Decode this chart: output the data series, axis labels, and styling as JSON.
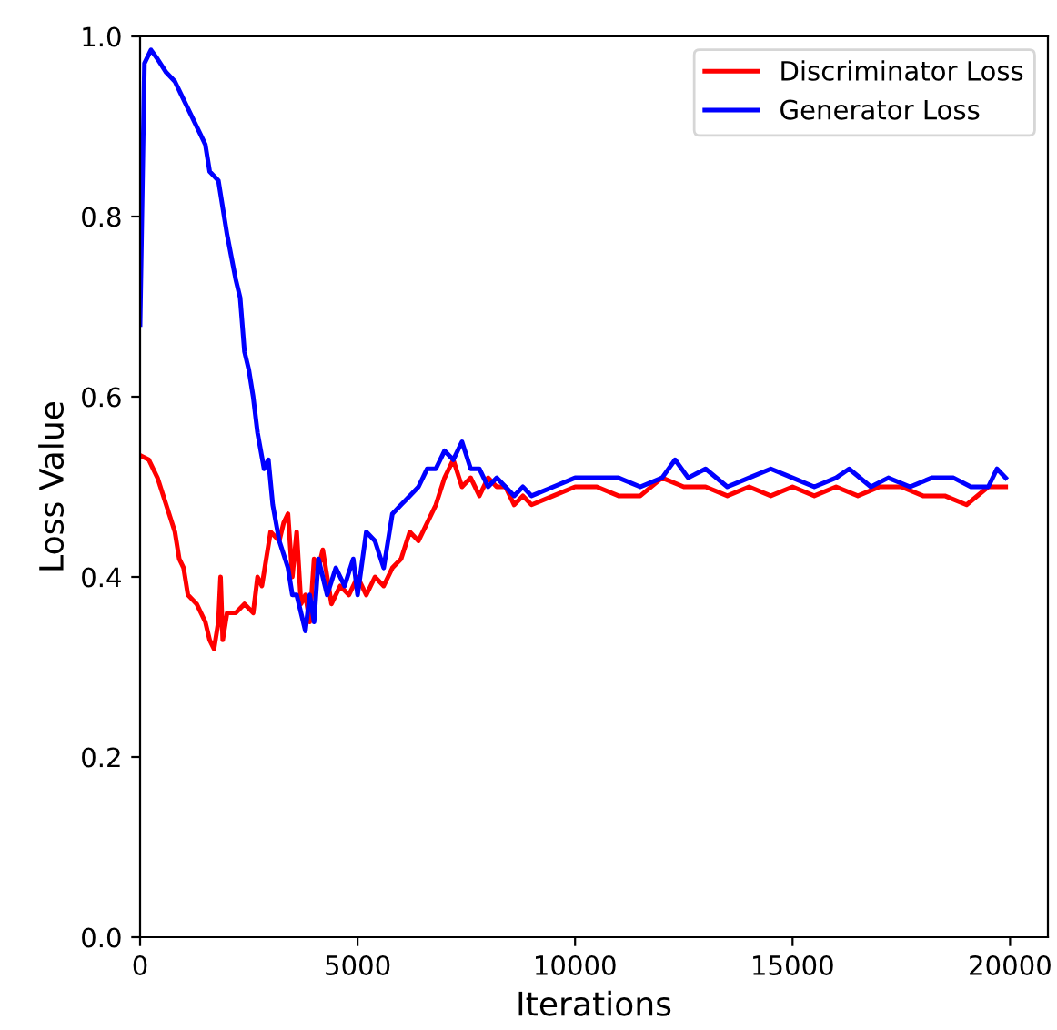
{
  "chart_data": {
    "type": "line",
    "xlabel": "Iterations",
    "ylabel": "Loss Value",
    "xlim": [
      0,
      20870
    ],
    "xticks": [
      0,
      5000,
      10000,
      15000,
      20000
    ],
    "ylim": [
      0,
      1
    ],
    "yticks": [
      {
        "value": 0,
        "label": "0.0"
      },
      {
        "value": 0.2,
        "label": "0.2"
      },
      {
        "value": 0.4,
        "label": "0.4"
      },
      {
        "value": 0.6,
        "label": "0.6"
      },
      {
        "value": 0.8,
        "label": "0.8"
      },
      {
        "value": 1,
        "label": "1.0"
      }
    ],
    "grid": false,
    "legend": "top right",
    "series": [
      {
        "name": "Discriminator Loss",
        "color": "#ff0000",
        "x": [
          0,
          200,
          400,
          600,
          800,
          900,
          1000,
          1100,
          1300,
          1500,
          1600,
          1700,
          1800,
          1850,
          1900,
          2000,
          2200,
          2400,
          2600,
          2700,
          2800,
          2900,
          3000,
          3200,
          3300,
          3400,
          3500,
          3600,
          3700,
          3800,
          3900,
          4000,
          4100,
          4200,
          4300,
          4400,
          4600,
          4800,
          5000,
          5200,
          5400,
          5600,
          5800,
          6000,
          6200,
          6400,
          6600,
          6800,
          7000,
          7200,
          7400,
          7600,
          7800,
          8000,
          8200,
          8400,
          8600,
          8800,
          9000,
          9500,
          10000,
          10500,
          11000,
          11500,
          12000,
          12500,
          13000,
          13500,
          14000,
          14500,
          15000,
          15500,
          16000,
          16500,
          17000,
          17500,
          18000,
          18500,
          19000,
          19500,
          19900
        ],
        "values": [
          0.535,
          0.53,
          0.51,
          0.48,
          0.45,
          0.42,
          0.41,
          0.38,
          0.37,
          0.35,
          0.33,
          0.32,
          0.35,
          0.4,
          0.33,
          0.36,
          0.36,
          0.37,
          0.36,
          0.4,
          0.39,
          0.42,
          0.45,
          0.44,
          0.46,
          0.47,
          0.4,
          0.45,
          0.37,
          0.38,
          0.35,
          0.42,
          0.41,
          0.43,
          0.4,
          0.37,
          0.39,
          0.38,
          0.4,
          0.38,
          0.4,
          0.39,
          0.41,
          0.42,
          0.45,
          0.44,
          0.46,
          0.48,
          0.51,
          0.53,
          0.5,
          0.51,
          0.49,
          0.51,
          0.5,
          0.5,
          0.48,
          0.49,
          0.48,
          0.49,
          0.5,
          0.5,
          0.49,
          0.49,
          0.51,
          0.5,
          0.5,
          0.49,
          0.5,
          0.49,
          0.5,
          0.49,
          0.5,
          0.49,
          0.5,
          0.5,
          0.49,
          0.49,
          0.48,
          0.5,
          0.5
        ]
      },
      {
        "name": "Generator Loss",
        "color": "#0000ff",
        "x": [
          0,
          100,
          250,
          400,
          600,
          800,
          1000,
          1200,
          1400,
          1500,
          1600,
          1800,
          2000,
          2200,
          2300,
          2400,
          2500,
          2600,
          2700,
          2850,
          2950,
          3050,
          3200,
          3400,
          3500,
          3600,
          3700,
          3800,
          3900,
          4000,
          4100,
          4300,
          4500,
          4700,
          4900,
          5000,
          5200,
          5400,
          5600,
          5800,
          6000,
          6200,
          6400,
          6600,
          6800,
          7000,
          7200,
          7400,
          7600,
          7800,
          8000,
          8200,
          8400,
          8600,
          8800,
          9000,
          9500,
          10000,
          10500,
          11000,
          11500,
          12000,
          12300,
          12600,
          13000,
          13500,
          14000,
          14500,
          15000,
          15500,
          16000,
          16300,
          16800,
          17200,
          17700,
          18200,
          18700,
          19100,
          19500,
          19700,
          19900
        ],
        "values": [
          0.68,
          0.97,
          0.985,
          0.975,
          0.96,
          0.95,
          0.93,
          0.91,
          0.89,
          0.88,
          0.85,
          0.84,
          0.78,
          0.73,
          0.71,
          0.65,
          0.63,
          0.6,
          0.56,
          0.52,
          0.53,
          0.48,
          0.44,
          0.41,
          0.38,
          0.38,
          0.36,
          0.34,
          0.38,
          0.35,
          0.42,
          0.38,
          0.41,
          0.39,
          0.42,
          0.38,
          0.45,
          0.44,
          0.41,
          0.47,
          0.48,
          0.49,
          0.5,
          0.52,
          0.52,
          0.54,
          0.53,
          0.55,
          0.52,
          0.52,
          0.5,
          0.51,
          0.5,
          0.49,
          0.5,
          0.49,
          0.5,
          0.51,
          0.51,
          0.51,
          0.5,
          0.51,
          0.53,
          0.51,
          0.52,
          0.5,
          0.51,
          0.52,
          0.51,
          0.5,
          0.51,
          0.52,
          0.5,
          0.51,
          0.5,
          0.51,
          0.51,
          0.5,
          0.5,
          0.52,
          0.51
        ]
      }
    ]
  }
}
